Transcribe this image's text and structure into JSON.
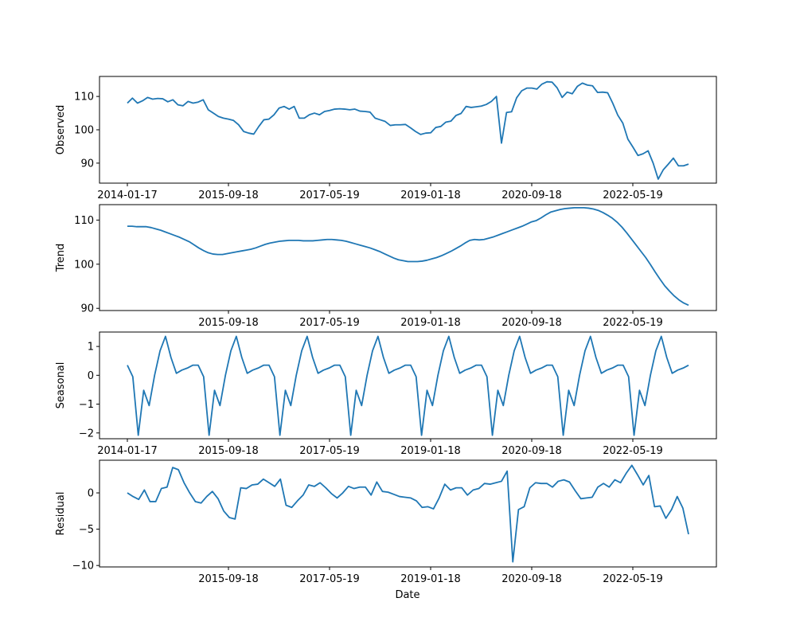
{
  "chart_data": {
    "type": "line",
    "layout": "four stacked panels sharing a date x-axis",
    "xlabel": "Date",
    "line_color": "#1f77b4",
    "x_tick_labels": [
      "2014-01-17",
      "2015-09-18",
      "2017-05-19",
      "2019-01-18",
      "2020-09-18",
      "2022-05-19"
    ],
    "panels": [
      {
        "name": "observed",
        "ylabel": "Observed",
        "ylim": [
          84,
          116
        ],
        "yticks": [
          90,
          100,
          110
        ],
        "x_tick_labels_shown": [
          "2014-01-17",
          "2015-09-18",
          "2017-05-19",
          "2019-01-18",
          "2020-09-18",
          "2022-05-19"
        ],
        "values": [
          108.0,
          109.5,
          108.0,
          108.7,
          109.7,
          109.2,
          109.4,
          109.3,
          108.4,
          109.0,
          107.5,
          107.2,
          108.5,
          108.0,
          108.3,
          109.0,
          106.0,
          105.0,
          104.0,
          103.5,
          103.2,
          102.8,
          101.5,
          99.5,
          99.0,
          98.7,
          101.0,
          103.0,
          103.2,
          104.5,
          106.5,
          107.0,
          106.2,
          107.0,
          103.5,
          103.5,
          104.5,
          105.0,
          104.5,
          105.5,
          105.8,
          106.2,
          106.3,
          106.2,
          106.0,
          106.2,
          105.6,
          105.5,
          105.3,
          103.5,
          103.0,
          102.5,
          101.3,
          101.5,
          101.5,
          101.6,
          100.6,
          99.5,
          98.6,
          99.0,
          99.1,
          100.7,
          101.0,
          102.3,
          102.6,
          104.3,
          104.9,
          107.0,
          106.7,
          106.9,
          107.1,
          107.6,
          108.5,
          110.0,
          96.0,
          105.2,
          105.4,
          109.6,
          111.7,
          112.5,
          112.5,
          112.2,
          113.7,
          114.4,
          114.3,
          112.6,
          109.7,
          111.3,
          110.8,
          113.0,
          114.0,
          113.4,
          113.2,
          111.2,
          111.3,
          111.1,
          108.0,
          104.4,
          102.0,
          97.2,
          94.8,
          92.3,
          92.8,
          93.7,
          90.0,
          85.2,
          88.0,
          89.7,
          91.5,
          89.2,
          89.2,
          89.7
        ]
      },
      {
        "name": "trend",
        "ylabel": "Trend",
        "ylim": [
          89.5,
          113.5
        ],
        "yticks": [
          90,
          100,
          110
        ],
        "x_tick_labels_shown": [
          "2015-09-18",
          "2017-05-19",
          "2019-01-18",
          "2020-09-18",
          "2022-05-19"
        ],
        "values": [
          108.6,
          108.6,
          108.5,
          108.5,
          108.5,
          108.3,
          108.0,
          107.7,
          107.3,
          106.9,
          106.5,
          106.1,
          105.6,
          105.1,
          104.4,
          103.7,
          103.1,
          102.6,
          102.3,
          102.2,
          102.2,
          102.4,
          102.6,
          102.8,
          103.0,
          103.2,
          103.4,
          103.7,
          104.1,
          104.5,
          104.8,
          105.0,
          105.2,
          105.3,
          105.4,
          105.4,
          105.4,
          105.3,
          105.3,
          105.3,
          105.4,
          105.5,
          105.6,
          105.6,
          105.5,
          105.4,
          105.2,
          104.9,
          104.6,
          104.3,
          104.0,
          103.7,
          103.3,
          102.9,
          102.4,
          101.9,
          101.4,
          101.0,
          100.8,
          100.6,
          100.6,
          100.6,
          100.7,
          100.9,
          101.2,
          101.5,
          101.9,
          102.4,
          102.9,
          103.5,
          104.1,
          104.8,
          105.4,
          105.6,
          105.5,
          105.6,
          105.9,
          106.2,
          106.6,
          107.0,
          107.4,
          107.8,
          108.2,
          108.6,
          109.1,
          109.6,
          109.9,
          110.5,
          111.2,
          111.8,
          112.1,
          112.4,
          112.6,
          112.7,
          112.8,
          112.8,
          112.8,
          112.7,
          112.5,
          112.2,
          111.7,
          111.1,
          110.4,
          109.5,
          108.4,
          107.1,
          105.7,
          104.3,
          102.9,
          101.5,
          99.9,
          98.2,
          96.6,
          95.1,
          93.9,
          92.8,
          91.9,
          91.2,
          90.7
        ]
      },
      {
        "name": "seasonal",
        "ylabel": "Seasonal",
        "ylim": [
          -2.2,
          1.5
        ],
        "yticks": [
          -2,
          -1,
          0,
          1
        ],
        "x_tick_labels_shown": [
          "2014-01-17",
          "2015-09-18",
          "2017-05-19",
          "2019-01-18",
          "2020-09-18",
          "2022-05-19"
        ],
        "pattern": [
          0.35,
          -0.05,
          -2.08,
          -0.52,
          -1.05,
          0.0,
          0.85,
          1.35,
          0.62,
          0.07,
          0.18,
          0.25,
          0.35
        ],
        "length": 104
      },
      {
        "name": "residual",
        "ylabel": "Residual",
        "ylim": [
          -10.2,
          4.5
        ],
        "yticks": [
          -10,
          -5,
          0
        ],
        "x_tick_labels_shown": [
          "2015-09-18",
          "2017-05-19",
          "2019-01-18",
          "2020-09-18",
          "2022-05-19"
        ],
        "values": [
          0.0,
          -0.5,
          -0.9,
          0.4,
          -1.2,
          -1.2,
          0.6,
          0.8,
          3.5,
          3.2,
          1.4,
          0.0,
          -1.2,
          -1.4,
          -0.5,
          0.2,
          -0.8,
          -2.5,
          -3.4,
          -3.6,
          0.7,
          0.6,
          1.1,
          1.2,
          1.9,
          1.4,
          0.9,
          1.9,
          -1.7,
          -2.0,
          -1.1,
          -0.3,
          1.1,
          0.9,
          1.4,
          0.7,
          -0.1,
          -0.7,
          0.0,
          0.9,
          0.6,
          0.8,
          0.8,
          -0.3,
          1.5,
          0.2,
          0.1,
          -0.2,
          -0.5,
          -0.6,
          -0.7,
          -1.1,
          -2.0,
          -1.9,
          -2.2,
          -0.7,
          1.2,
          0.4,
          0.7,
          0.7,
          -0.3,
          0.4,
          0.6,
          1.3,
          1.2,
          1.4,
          1.6,
          3.0,
          -9.5,
          -2.3,
          -1.9,
          0.7,
          1.4,
          1.3,
          1.3,
          0.8,
          1.6,
          1.8,
          1.5,
          0.3,
          -0.8,
          -0.7,
          -0.6,
          0.8,
          1.3,
          0.8,
          1.8,
          1.4,
          2.7,
          3.8,
          2.5,
          1.1,
          2.4,
          -1.9,
          -1.8,
          -3.5,
          -2.3,
          -0.5,
          -2.1,
          -5.7
        ]
      }
    ]
  }
}
